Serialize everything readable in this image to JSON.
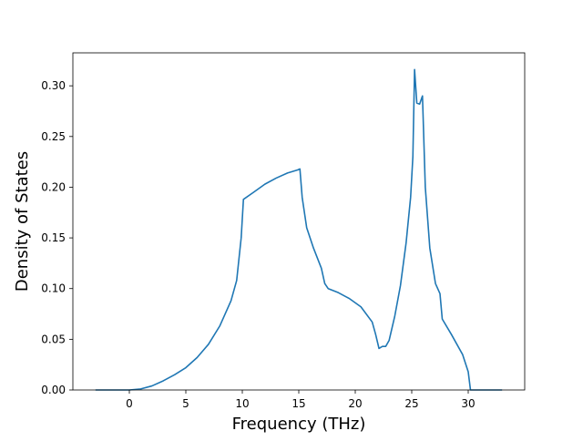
{
  "chart_data": {
    "type": "line",
    "title": "",
    "xlabel": "Frequency (THz)",
    "ylabel": "Density of States",
    "xlim": [
      -5,
      35
    ],
    "ylim": [
      0.0,
      0.3325
    ],
    "xticks": [
      0,
      5,
      10,
      15,
      20,
      25,
      30
    ],
    "xtick_labels": [
      "0",
      "5",
      "10",
      "15",
      "20",
      "25",
      "30"
    ],
    "yticks": [
      0.0,
      0.05,
      0.1,
      0.15,
      0.2,
      0.25,
      0.3
    ],
    "ytick_labels": [
      "0.00",
      "0.05",
      "0.10",
      "0.15",
      "0.20",
      "0.25",
      "0.30"
    ],
    "grid": false,
    "legend": "none",
    "series": [
      {
        "color": "#1f77b4",
        "x": [
          -3,
          0,
          1,
          2,
          3,
          4,
          5,
          6,
          7,
          8,
          9,
          9.5,
          9.9,
          10.1,
          11,
          12,
          13,
          14,
          14.9,
          15.1,
          15.3,
          15.7,
          16.3,
          17,
          17.3,
          17.6,
          18.5,
          19.5,
          20.5,
          21.5,
          21.8,
          22.1,
          22.4,
          22.7,
          23.0,
          23.5,
          24.0,
          24.5,
          24.9,
          25.1,
          25.25,
          25.45,
          25.7,
          25.95,
          26.2,
          26.6,
          27.1,
          27.5,
          27.7,
          28.5,
          29.5,
          30.0,
          30.2,
          33
        ],
        "y": [
          0.0,
          0.0,
          0.001,
          0.004,
          0.009,
          0.015,
          0.022,
          0.032,
          0.045,
          0.063,
          0.088,
          0.108,
          0.15,
          0.188,
          0.195,
          0.203,
          0.209,
          0.214,
          0.217,
          0.218,
          0.19,
          0.16,
          0.14,
          0.12,
          0.105,
          0.1,
          0.096,
          0.09,
          0.082,
          0.067,
          0.055,
          0.041,
          0.043,
          0.043,
          0.049,
          0.073,
          0.103,
          0.145,
          0.19,
          0.23,
          0.316,
          0.283,
          0.282,
          0.29,
          0.2,
          0.14,
          0.105,
          0.095,
          0.07,
          0.055,
          0.035,
          0.018,
          0.0,
          0.0
        ]
      }
    ]
  }
}
